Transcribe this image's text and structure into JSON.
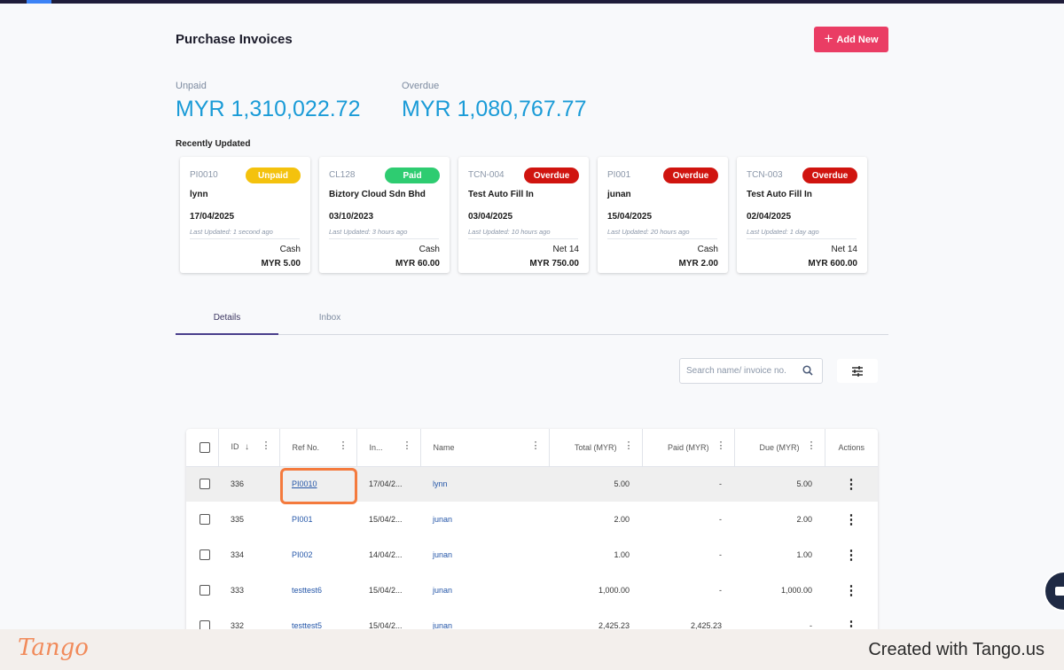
{
  "page": {
    "title": "Purchase Invoices",
    "add_label": "Add New"
  },
  "summary": {
    "unpaid_label": "Unpaid",
    "unpaid_amount": "MYR 1,310,022.72",
    "overdue_label": "Overdue",
    "overdue_amount": "MYR 1,080,767.77"
  },
  "recent": {
    "title": "Recently Updated",
    "cards": [
      {
        "ref": "PI0010",
        "status": "Unpaid",
        "status_color": "#f4c20d",
        "name": "lynn",
        "date": "17/04/2025",
        "updated": "Last Updated: 1 second ago",
        "term": "Cash",
        "total": "MYR 5.00"
      },
      {
        "ref": "CL128",
        "status": "Paid",
        "status_color": "#2ecc71",
        "name": "Biztory Cloud Sdn Bhd",
        "date": "03/10/2023",
        "updated": "Last Updated: 3 hours ago",
        "term": "Cash",
        "total": "MYR 60.00"
      },
      {
        "ref": "TCN-004",
        "status": "Overdue",
        "status_color": "#d0140f",
        "name": "Test Auto Fill In",
        "date": "03/04/2025",
        "updated": "Last Updated: 10 hours ago",
        "term": "Net 14",
        "total": "MYR 750.00"
      },
      {
        "ref": "PI001",
        "status": "Overdue",
        "status_color": "#d0140f",
        "name": "junan",
        "date": "15/04/2025",
        "updated": "Last Updated: 20 hours ago",
        "term": "Cash",
        "total": "MYR 2.00"
      },
      {
        "ref": "TCN-003",
        "status": "Overdue",
        "status_color": "#d0140f",
        "name": "Test Auto Fill In",
        "date": "02/04/2025",
        "updated": "Last Updated: 1 day ago",
        "term": "Net 14",
        "total": "MYR 600.00"
      }
    ]
  },
  "tabs": [
    {
      "label": "Details"
    },
    {
      "label": "Inbox"
    }
  ],
  "search": {
    "placeholder": "Search name/ invoice no."
  },
  "table": {
    "columns": {
      "id": "ID",
      "ref": "Ref No.",
      "inv": "In...",
      "name": "Name",
      "total": "Total (MYR)",
      "paid": "Paid (MYR)",
      "due": "Due (MYR)",
      "actions": "Actions"
    },
    "rows": [
      {
        "id": "336",
        "ref": "PI0010",
        "date": "17/04/2...",
        "name": "lynn",
        "total": "5.00",
        "paid": "-",
        "due": "5.00"
      },
      {
        "id": "335",
        "ref": "PI001",
        "date": "15/04/2...",
        "name": "junan",
        "total": "2.00",
        "paid": "-",
        "due": "2.00"
      },
      {
        "id": "334",
        "ref": "PI002",
        "date": "14/04/2...",
        "name": "junan",
        "total": "1.00",
        "paid": "-",
        "due": "1.00"
      },
      {
        "id": "333",
        "ref": "testtest6",
        "date": "15/04/2...",
        "name": "junan",
        "total": "1,000.00",
        "paid": "-",
        "due": "1,000.00"
      },
      {
        "id": "332",
        "ref": "testtest5",
        "date": "15/04/2...",
        "name": "junan",
        "total": "2,425.23",
        "paid": "2,425.23",
        "due": "-"
      }
    ]
  },
  "footer": {
    "brand": "Tango",
    "credit": "Created with Tango.us"
  }
}
